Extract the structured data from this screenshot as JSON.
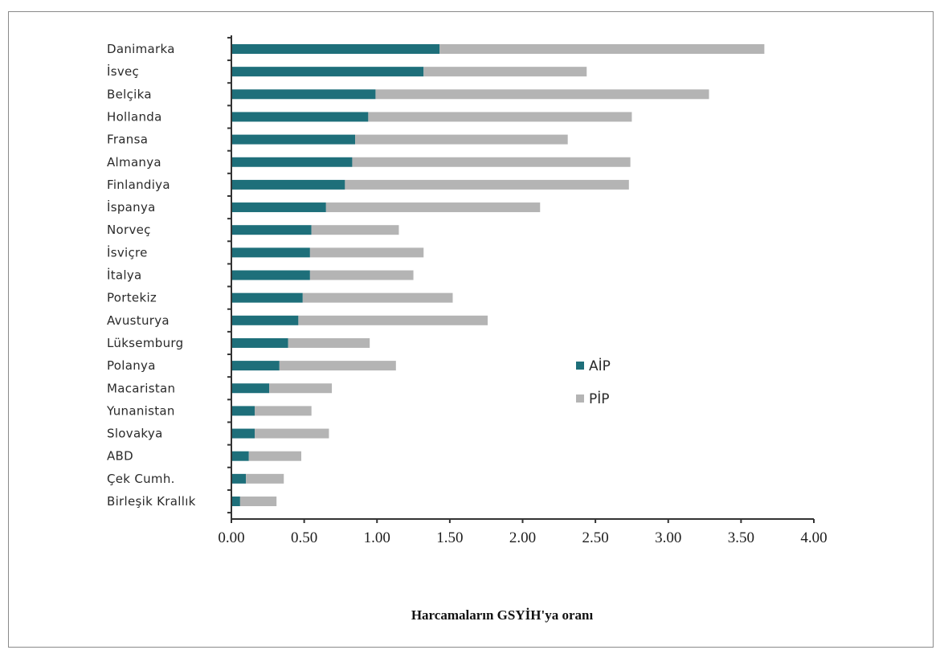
{
  "chart_data": {
    "type": "bar",
    "orientation": "horizontal",
    "stacked": true,
    "categories": [
      "Danimarka",
      "İsveç",
      "Belçika",
      "Hollanda",
      "Fransa",
      "Almanya",
      "Finlandiya",
      "İspanya",
      "Norveç",
      "İsviçre",
      "İtalya",
      "Portekiz",
      "Avusturya",
      "Lüksemburg",
      "Polanya",
      "Macaristan",
      "Yunanistan",
      "Slovakya",
      "ABD",
      "Çek Cumh.",
      "Birleşik Krallık"
    ],
    "series": [
      {
        "name": "AİP",
        "color": "#1e6f7a",
        "values": [
          1.43,
          1.32,
          0.99,
          0.94,
          0.85,
          0.83,
          0.78,
          0.65,
          0.55,
          0.54,
          0.54,
          0.49,
          0.46,
          0.39,
          0.33,
          0.26,
          0.16,
          0.16,
          0.12,
          0.1,
          0.06
        ]
      },
      {
        "name": "PİP",
        "color": "#b4b4b4",
        "values": [
          2.23,
          1.12,
          2.29,
          1.81,
          1.46,
          1.91,
          1.95,
          1.47,
          0.6,
          0.78,
          0.71,
          1.03,
          1.3,
          0.56,
          0.8,
          0.43,
          0.39,
          0.51,
          0.36,
          0.26,
          0.25
        ]
      }
    ],
    "xlabel": "Harcamaların GSYİH'ya oranı",
    "ylabel": "",
    "xlim": [
      0,
      4.0
    ],
    "xticks": [
      "0.00",
      "0.50",
      "1.00",
      "1.50",
      "2.00",
      "2.50",
      "3.00",
      "3.50",
      "4.00"
    ],
    "grid": false,
    "legend_position": "right-middle"
  }
}
